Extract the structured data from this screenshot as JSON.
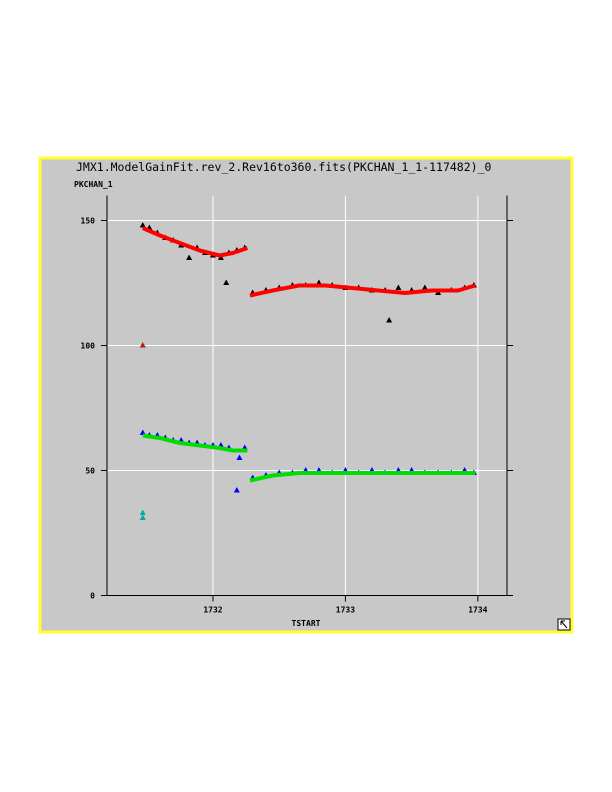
{
  "chart_data": {
    "type": "scatter",
    "title": "JMX1.ModelGainFit.rev_2.Rev16to360.fits(PKCHAN_1_1-117482)_0",
    "y_label": "PKCHAN_1",
    "x_label": "TSTART",
    "xlim": [
      1731.2,
      1734.22
    ],
    "ylim": [
      0,
      160
    ],
    "xticks": [
      1732,
      1733,
      1734
    ],
    "yticks": [
      0,
      50,
      100,
      150
    ],
    "grid": true,
    "series": [
      {
        "mode": "markers",
        "color": "#000000",
        "x": [
          1731.47,
          1731.52,
          1731.58,
          1731.64,
          1731.7,
          1731.76,
          1731.82,
          1731.88,
          1731.94,
          1732.0,
          1732.06,
          1732.1,
          1732.12,
          1732.18,
          1732.24,
          1732.3,
          1732.4,
          1732.5,
          1732.6,
          1732.7,
          1732.8,
          1732.9,
          1733.0,
          1733.1,
          1733.2,
          1733.3,
          1733.33,
          1733.4,
          1733.5,
          1733.6,
          1733.7,
          1733.8,
          1733.9,
          1733.97
        ],
        "values": [
          148,
          147,
          145,
          143,
          142,
          140,
          135,
          139,
          137,
          136,
          135,
          125,
          137,
          138,
          139,
          121,
          122,
          123,
          124,
          124,
          125,
          124,
          123,
          123,
          122,
          122,
          110,
          123,
          122,
          123,
          121,
          122,
          123,
          124
        ]
      },
      {
        "mode": "markers",
        "color": "#0000ff",
        "x": [
          1731.47,
          1731.52,
          1731.58,
          1731.64,
          1731.7,
          1731.76,
          1731.82,
          1731.88,
          1731.94,
          1732.0,
          1732.06,
          1732.12,
          1732.18,
          1732.2,
          1732.24,
          1732.3,
          1732.4,
          1732.5,
          1732.6,
          1732.7,
          1732.8,
          1732.9,
          1733.0,
          1733.1,
          1733.2,
          1733.3,
          1733.4,
          1733.5,
          1733.6,
          1733.7,
          1733.8,
          1733.9,
          1733.97
        ],
        "values": [
          65,
          64,
          64,
          63,
          62,
          62,
          61,
          61,
          60,
          60,
          60,
          59,
          42,
          55,
          59,
          47,
          48,
          49,
          49,
          50,
          50,
          49,
          50,
          49,
          50,
          49,
          50,
          50,
          49,
          49,
          49,
          50,
          49
        ]
      },
      {
        "mode": "line",
        "color": "#ff0000",
        "x": [
          1731.47,
          1731.6,
          1731.75,
          1731.9,
          1732.05,
          1732.15,
          1732.26,
          1732.27,
          1732.28,
          1732.45,
          1732.65,
          1732.85,
          1733.05,
          1733.25,
          1733.45,
          1733.65,
          1733.85,
          1733.98
        ],
        "values": [
          147,
          144,
          141,
          138,
          136,
          137,
          139,
          null,
          120,
          122,
          124,
          124,
          123,
          122,
          121,
          122,
          122,
          124
        ]
      },
      {
        "mode": "line",
        "color": "#00dd00",
        "x": [
          1731.47,
          1731.6,
          1731.75,
          1731.9,
          1732.05,
          1732.15,
          1732.26,
          1732.27,
          1732.28,
          1732.45,
          1732.65,
          1732.85,
          1733.05,
          1733.25,
          1733.45,
          1733.65,
          1733.85,
          1733.98
        ],
        "values": [
          64,
          63,
          61,
          60,
          59,
          58,
          58,
          null,
          46,
          48,
          49,
          49,
          49,
          49,
          49,
          49,
          49,
          49
        ]
      },
      {
        "mode": "markers",
        "color": "#aa2200",
        "x": [
          1731.47
        ],
        "values": [
          100
        ]
      },
      {
        "mode": "markers",
        "color": "#00aaaa",
        "x": [
          1731.47,
          1731.47
        ],
        "values": [
          33,
          31
        ]
      }
    ]
  }
}
